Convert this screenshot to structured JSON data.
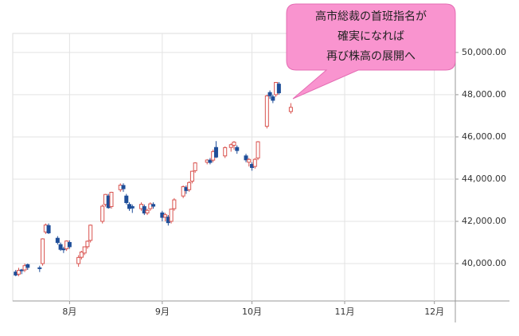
{
  "chart_data": {
    "type": "candlestick",
    "annotation": [
      "高市総裁の首班指名が",
      "確実になれば",
      "再び株高の展開へ"
    ],
    "x": [
      195,
      196,
      197,
      198,
      199,
      203,
      204,
      205,
      206,
      209,
      210,
      211,
      212,
      213,
      216,
      217,
      218,
      219,
      220,
      224,
      225,
      226,
      227,
      230,
      231,
      232,
      233,
      234,
      237,
      238,
      239,
      240,
      241,
      244,
      245,
      246,
      247,
      248,
      251,
      252,
      253,
      254,
      255,
      259,
      260,
      261,
      262,
      265,
      267,
      268,
      269,
      272,
      273,
      274,
      275,
      276,
      279,
      280,
      281,
      282,
      283,
      287
    ],
    "open": [
      39600,
      39500,
      39700,
      39700,
      39950,
      39800,
      40000,
      41500,
      41800,
      41200,
      40900,
      40700,
      40700,
      41000,
      40000,
      40300,
      40500,
      40800,
      41100,
      42000,
      42800,
      43200,
      42700,
      43500,
      43700,
      43200,
      42800,
      42700,
      42600,
      42700,
      42400,
      42600,
      42800,
      42400,
      42200,
      42200,
      42000,
      42600,
      43200,
      43600,
      43500,
      43900,
      44400,
      44800,
      44900,
      44900,
      45500,
      45100,
      45500,
      45600,
      45500,
      45100,
      44800,
      44700,
      44600,
      45000,
      46500,
      48100,
      47900,
      48000,
      48500,
      47200
    ],
    "high": [
      39700,
      39800,
      39750,
      40000,
      40000,
      39900,
      41200,
      41900,
      41900,
      41300,
      41000,
      40800,
      41100,
      41100,
      40400,
      40600,
      40800,
      41100,
      41850,
      42800,
      43300,
      43300,
      43400,
      43800,
      43800,
      43300,
      42900,
      42800,
      42900,
      42800,
      42600,
      42900,
      42900,
      42500,
      42400,
      42300,
      42600,
      43100,
      43700,
      43700,
      43900,
      44400,
      44800,
      44950,
      45000,
      45400,
      45800,
      45550,
      45700,
      45800,
      45600,
      45200,
      45000,
      44800,
      45000,
      45800,
      48000,
      48200,
      48000,
      48600,
      48600,
      47600
    ],
    "low": [
      39400,
      39400,
      39500,
      39600,
      39700,
      39600,
      39900,
      41400,
      41400,
      40900,
      40600,
      40500,
      40600,
      40700,
      39850,
      40200,
      40400,
      40700,
      41000,
      41900,
      42700,
      42600,
      42600,
      43400,
      43400,
      42800,
      42500,
      42400,
      42500,
      42300,
      42300,
      42500,
      42600,
      42000,
      42000,
      41800,
      41900,
      42500,
      43100,
      43300,
      43400,
      43800,
      44300,
      44700,
      44700,
      44800,
      45000,
      45000,
      45300,
      45400,
      45200,
      44800,
      44600,
      44400,
      44500,
      44900,
      46400,
      47800,
      47600,
      47900,
      48000,
      47100
    ],
    "close": [
      39459,
      39678,
      39663,
      39901,
      39819,
      39774,
      41171,
      41826,
      41456,
      40998,
      40674,
      40654,
      41069,
      40799,
      40290,
      40549,
      40794,
      41059,
      41820,
      42718,
      43274,
      42649,
      43378,
      43714,
      43546,
      42888,
      42610,
      42633,
      42807,
      42394,
      42520,
      42828,
      42718,
      42188,
      42310,
      41938,
      42580,
      43018,
      43643,
      43459,
      43837,
      44372,
      44768,
      44902,
      44790,
      45303,
      45045,
      45493,
      45630,
      45754,
      45354,
      44913,
      44932,
      44550,
      44936,
      45769,
      47944,
      47950,
      47734,
      48580,
      48088,
      47400
    ],
    "up_color": "#d9534f",
    "down_color": "#1f4e99",
    "xlim": [
      194,
      342
    ],
    "xticks": [
      {
        "value": 213,
        "label": "8月"
      },
      {
        "value": 244,
        "label": "9月"
      },
      {
        "value": 274,
        "label": "10月"
      },
      {
        "value": 305,
        "label": "11月"
      },
      {
        "value": 335,
        "label": "12月"
      }
    ],
    "ylim": [
      38230,
      50900
    ],
    "yticks": [
      {
        "value": 40000,
        "label": "40,000.00"
      },
      {
        "value": 42000,
        "label": "42,000.00"
      },
      {
        "value": 44000,
        "label": "44,000.00"
      },
      {
        "value": 46000,
        "label": "46,000.00"
      },
      {
        "value": 48000,
        "label": "48,000.00"
      },
      {
        "value": 50000,
        "label": "50,000.00"
      }
    ],
    "grid": true
  }
}
